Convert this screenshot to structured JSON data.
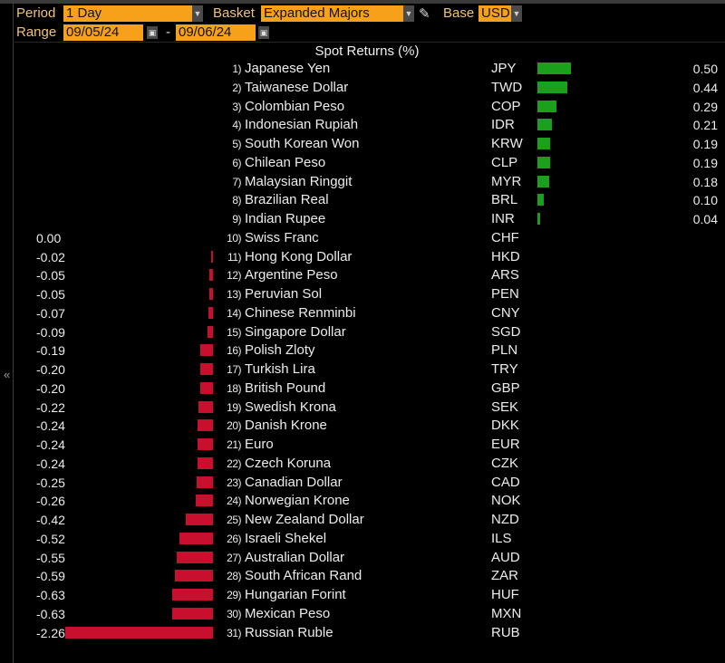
{
  "controls": {
    "period_label": "Period",
    "period_value": "1 Day",
    "basket_label": "Basket",
    "basket_value": "Expanded Majors",
    "base_label": "Base",
    "base_value": "USD",
    "range_label": "Range",
    "range_start": "09/05/24",
    "range_sep": "-",
    "range_end": "09/06/24"
  },
  "colors": {
    "positive": "#1aa01a",
    "negative": "#c8102e",
    "field": "#f7a11a"
  },
  "chart_data": {
    "type": "bar",
    "title": "Spot Returns (%)",
    "orientation": "horizontal",
    "rows": [
      {
        "rank": "1)",
        "name": "Japanese Yen",
        "code": "JPY",
        "value": 0.5,
        "label": "0.50"
      },
      {
        "rank": "2)",
        "name": "Taiwanese Dollar",
        "code": "TWD",
        "value": 0.44,
        "label": "0.44"
      },
      {
        "rank": "3)",
        "name": "Colombian Peso",
        "code": "COP",
        "value": 0.29,
        "label": "0.29"
      },
      {
        "rank": "4)",
        "name": "Indonesian Rupiah",
        "code": "IDR",
        "value": 0.21,
        "label": "0.21"
      },
      {
        "rank": "5)",
        "name": "South Korean Won",
        "code": "KRW",
        "value": 0.19,
        "label": "0.19"
      },
      {
        "rank": "6)",
        "name": "Chilean Peso",
        "code": "CLP",
        "value": 0.19,
        "label": "0.19"
      },
      {
        "rank": "7)",
        "name": "Malaysian Ringgit",
        "code": "MYR",
        "value": 0.18,
        "label": "0.18"
      },
      {
        "rank": "8)",
        "name": "Brazilian Real",
        "code": "BRL",
        "value": 0.1,
        "label": "0.10"
      },
      {
        "rank": "9)",
        "name": "Indian Rupee",
        "code": "INR",
        "value": 0.04,
        "label": "0.04"
      },
      {
        "rank": "10)",
        "name": "Swiss Franc",
        "code": "CHF",
        "value": 0.0,
        "label": "0.00"
      },
      {
        "rank": "11)",
        "name": "Hong Kong Dollar",
        "code": "HKD",
        "value": -0.02,
        "label": "-0.02"
      },
      {
        "rank": "12)",
        "name": "Argentine Peso",
        "code": "ARS",
        "value": -0.05,
        "label": "-0.05"
      },
      {
        "rank": "13)",
        "name": "Peruvian Sol",
        "code": "PEN",
        "value": -0.05,
        "label": "-0.05"
      },
      {
        "rank": "14)",
        "name": "Chinese Renminbi",
        "code": "CNY",
        "value": -0.07,
        "label": "-0.07"
      },
      {
        "rank": "15)",
        "name": "Singapore Dollar",
        "code": "SGD",
        "value": -0.09,
        "label": "-0.09"
      },
      {
        "rank": "16)",
        "name": "Polish Zloty",
        "code": "PLN",
        "value": -0.19,
        "label": "-0.19"
      },
      {
        "rank": "17)",
        "name": "Turkish Lira",
        "code": "TRY",
        "value": -0.2,
        "label": "-0.20"
      },
      {
        "rank": "18)",
        "name": "British Pound",
        "code": "GBP",
        "value": -0.2,
        "label": "-0.20"
      },
      {
        "rank": "19)",
        "name": "Swedish Krona",
        "code": "SEK",
        "value": -0.22,
        "label": "-0.22"
      },
      {
        "rank": "20)",
        "name": "Danish Krone",
        "code": "DKK",
        "value": -0.24,
        "label": "-0.24"
      },
      {
        "rank": "21)",
        "name": "Euro",
        "code": "EUR",
        "value": -0.24,
        "label": "-0.24"
      },
      {
        "rank": "22)",
        "name": "Czech Koruna",
        "code": "CZK",
        "value": -0.24,
        "label": "-0.24"
      },
      {
        "rank": "23)",
        "name": "Canadian Dollar",
        "code": "CAD",
        "value": -0.25,
        "label": "-0.25"
      },
      {
        "rank": "24)",
        "name": "Norwegian Krone",
        "code": "NOK",
        "value": -0.26,
        "label": "-0.26"
      },
      {
        "rank": "25)",
        "name": "New Zealand Dollar",
        "code": "NZD",
        "value": -0.42,
        "label": "-0.42"
      },
      {
        "rank": "26)",
        "name": "Israeli Shekel",
        "code": "ILS",
        "value": -0.52,
        "label": "-0.52"
      },
      {
        "rank": "27)",
        "name": "Australian Dollar",
        "code": "AUD",
        "value": -0.55,
        "label": "-0.55"
      },
      {
        "rank": "28)",
        "name": "South African Rand",
        "code": "ZAR",
        "value": -0.59,
        "label": "-0.59"
      },
      {
        "rank": "29)",
        "name": "Hungarian Forint",
        "code": "HUF",
        "value": -0.63,
        "label": "-0.63"
      },
      {
        "rank": "30)",
        "name": "Mexican Peso",
        "code": "MXN",
        "value": -0.63,
        "label": "-0.63"
      },
      {
        "rank": "31)",
        "name": "Russian Ruble",
        "code": "RUB",
        "value": -2.26,
        "label": "-2.26"
      }
    ]
  }
}
